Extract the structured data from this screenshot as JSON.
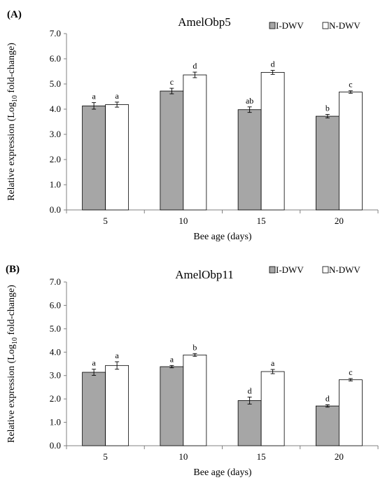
{
  "chart_data": [
    {
      "type": "bar",
      "panel_label": "(A)",
      "title": "AmelObp5",
      "xlabel": "Bee age (days)",
      "ylabel_main": "Relative expression (Log",
      "ylabel_sub": "10",
      "ylabel_tail": " fold-change)",
      "ylim": [
        0,
        7
      ],
      "yticks": [
        "0.0",
        "1.0",
        "2.0",
        "3.0",
        "4.0",
        "5.0",
        "6.0",
        "7.0"
      ],
      "grid": false,
      "legend_position": "top-right",
      "categories": [
        "5",
        "10",
        "15",
        "20"
      ],
      "series": [
        {
          "name": "I-DWV",
          "color": "#a6a6a6",
          "values": [
            4.13,
            4.72,
            3.98,
            3.72
          ],
          "errors": [
            0.13,
            0.11,
            0.11,
            0.07
          ],
          "labels": [
            "a",
            "c",
            "ab",
            "b"
          ]
        },
        {
          "name": "N-DWV",
          "color": "#ffffff",
          "values": [
            4.18,
            5.36,
            5.46,
            4.68
          ],
          "errors": [
            0.1,
            0.11,
            0.08,
            0.05
          ],
          "labels": [
            "a",
            "d",
            "d",
            "c"
          ]
        }
      ]
    },
    {
      "type": "bar",
      "panel_label": "(B)",
      "title": "AmelObp11",
      "xlabel": "Bee age (days)",
      "ylabel_main": "Relative expression (Log",
      "ylabel_sub": "10",
      "ylabel_tail": " fold-change)",
      "ylim": [
        0,
        7
      ],
      "yticks": [
        "0.0",
        "1.0",
        "2.0",
        "3.0",
        "4.0",
        "5.0",
        "6.0",
        "7.0"
      ],
      "grid": false,
      "legend_position": "top-right",
      "categories": [
        "5",
        "10",
        "15",
        "20"
      ],
      "series": [
        {
          "name": "I-DWV",
          "color": "#a6a6a6",
          "values": [
            3.14,
            3.38,
            1.93,
            1.7
          ],
          "errors": [
            0.13,
            0.05,
            0.15,
            0.05
          ],
          "labels": [
            "a",
            "a",
            "d",
            "d"
          ]
        },
        {
          "name": "N-DWV",
          "color": "#ffffff",
          "values": [
            3.43,
            3.88,
            3.17,
            2.82
          ],
          "errors": [
            0.16,
            0.06,
            0.09,
            0.05
          ],
          "labels": [
            "a",
            "b",
            "a",
            "c"
          ]
        }
      ]
    }
  ]
}
